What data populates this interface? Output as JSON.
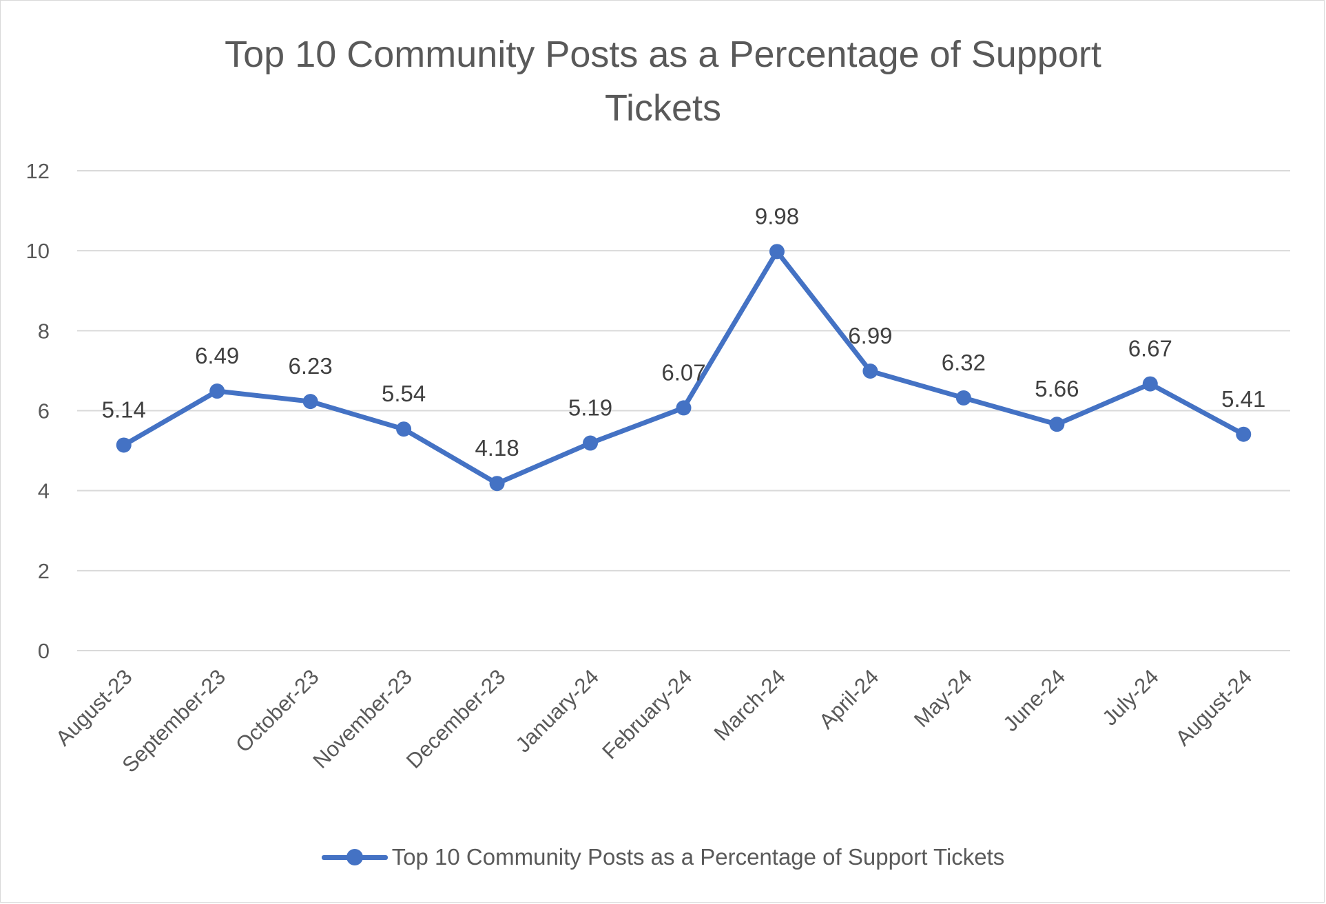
{
  "chart_data": {
    "type": "line",
    "title": "Top 10 Community Posts as a Percentage of Support Tickets",
    "categories": [
      "August-23",
      "September-23",
      "October-23",
      "November-23",
      "December-23",
      "January-24",
      "February-24",
      "March-24",
      "April-24",
      "May-24",
      "June-24",
      "July-24",
      "August-24"
    ],
    "series": [
      {
        "name": "Top 10 Community Posts as a Percentage of Support Tickets",
        "values": [
          5.14,
          6.49,
          6.23,
          5.54,
          4.18,
          5.19,
          6.07,
          9.98,
          6.99,
          6.32,
          5.66,
          6.67,
          5.41
        ],
        "color": "#4472c4"
      }
    ],
    "ylim": [
      0,
      12
    ],
    "yticks": [
      0,
      2,
      4,
      6,
      8,
      10,
      12
    ],
    "grid": true,
    "data_labels": true,
    "legend_position": "bottom"
  }
}
